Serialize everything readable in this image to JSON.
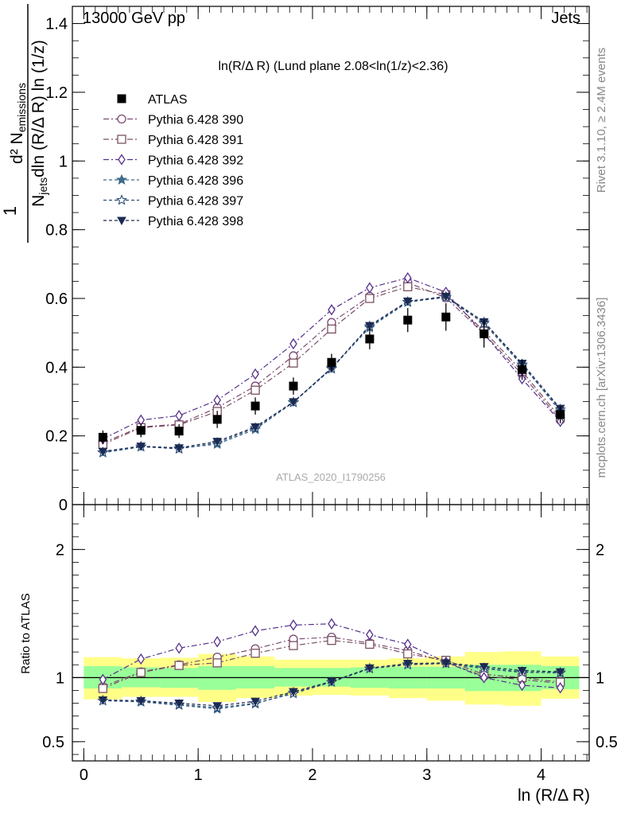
{
  "header": {
    "left": "13000 GeV pp",
    "right": "Jets"
  },
  "plot_title": "ln(R/Δ R) (Lund plane 2.08<ln(1/z)<2.36)",
  "watermark": "ATLAS_2020_I1790256",
  "side_labels": {
    "rivet": "Rivet 3.1.10, ≥ 2.4M events",
    "mcplots": "mcplots.cern.ch [arXiv:1306.3436]"
  },
  "y_label_main": {
    "numerator": "d² N",
    "numerator_sub": "emissions",
    "denominator": "N",
    "denominator_sub": "jets",
    "denominator_rest": "dln (R/Δ R) ln (1/z)",
    "one": "1"
  },
  "y_label_ratio": "Ratio to ATLAS",
  "x_label": "ln (R/Δ R)",
  "colors": {
    "data": "#000000",
    "p390": "#7b4a74",
    "p391": "#7a5060",
    "p392": "#55308a",
    "p396": "#3f6a8a",
    "p397": "#2e4e78",
    "p398": "#1c2a52",
    "band_inner": "#99ff99",
    "band_outer": "#ffff88"
  },
  "chart_data": [
    {
      "type": "line",
      "name": "main",
      "xlim": [
        -0.1,
        4.42
      ],
      "ylim": [
        0,
        1.45
      ],
      "x_ticks": [
        "0",
        "1",
        "2",
        "3",
        "4"
      ],
      "y_ticks": [
        "0",
        "0.2",
        "0.4",
        "0.6",
        "0.8",
        "1",
        "1.2",
        "1.4"
      ],
      "x": [
        0.167,
        0.5,
        0.833,
        1.167,
        1.5,
        1.833,
        2.167,
        2.5,
        2.833,
        3.167,
        3.5,
        3.833,
        4.167
      ],
      "data": {
        "name": "ATLAS",
        "values": [
          0.196,
          0.216,
          0.214,
          0.248,
          0.287,
          0.345,
          0.414,
          0.482,
          0.537,
          0.546,
          0.497,
          0.393,
          0.262
        ],
        "errors": [
          0.02,
          0.02,
          0.02,
          0.025,
          0.025,
          0.025,
          0.025,
          0.03,
          0.035,
          0.04,
          0.04,
          0.03,
          0.025
        ]
      },
      "series": [
        {
          "name": "Pythia 6.428 390",
          "marker": "circle-open",
          "color_key": "p390",
          "dash": "dashdot",
          "values": [
            0.18,
            0.226,
            0.234,
            0.282,
            0.345,
            0.433,
            0.53,
            0.606,
            0.646,
            0.602,
            0.497,
            0.379,
            0.246
          ]
        },
        {
          "name": "Pythia 6.428 391",
          "marker": "square-open",
          "color_key": "p391",
          "dash": "dashdot",
          "values": [
            0.175,
            0.224,
            0.232,
            0.271,
            0.333,
            0.412,
            0.511,
            0.6,
            0.634,
            0.611,
            0.505,
            0.388,
            0.253
          ]
        },
        {
          "name": "Pythia 6.428 392",
          "marker": "diamond-open",
          "color_key": "p392",
          "dash": "dashdot",
          "values": [
            0.191,
            0.246,
            0.259,
            0.304,
            0.38,
            0.468,
            0.567,
            0.631,
            0.66,
            0.618,
            0.497,
            0.366,
            0.242
          ]
        },
        {
          "name": "Pythia 6.428 396",
          "marker": "star-filled",
          "color_key": "p396",
          "dash": "dashed",
          "values": [
            0.151,
            0.168,
            0.164,
            0.176,
            0.219,
            0.298,
            0.398,
            0.515,
            0.589,
            0.605,
            0.531,
            0.408,
            0.271
          ]
        },
        {
          "name": "Pythia 6.428 397",
          "marker": "star-open",
          "color_key": "p397",
          "dash": "dashed",
          "values": [
            0.152,
            0.169,
            0.162,
            0.18,
            0.223,
            0.297,
            0.395,
            0.519,
            0.59,
            0.603,
            0.527,
            0.405,
            0.277
          ]
        },
        {
          "name": "Pythia 6.428 398",
          "marker": "triangle-down-filled",
          "color_key": "p398",
          "dash": "dashed",
          "values": [
            0.155,
            0.17,
            0.165,
            0.184,
            0.226,
            0.299,
            0.397,
            0.521,
            0.592,
            0.606,
            0.532,
            0.411,
            0.28
          ]
        }
      ]
    },
    {
      "type": "line",
      "name": "ratio",
      "ylabel": "Ratio to ATLAS",
      "xlim": [
        -0.1,
        4.42
      ],
      "ylim": [
        0.35,
        2.35
      ],
      "y_ticks": [
        "0.5",
        "1",
        "2"
      ],
      "bin_edges": [
        0,
        0.333,
        0.667,
        1.0,
        1.333,
        1.667,
        2.0,
        2.333,
        2.667,
        3.0,
        3.333,
        3.667,
        4.0,
        4.333
      ],
      "band_inner": [
        [
          0.915,
          1.09
        ],
        [
          0.925,
          1.08
        ],
        [
          0.92,
          1.075
        ],
        [
          0.905,
          1.09
        ],
        [
          0.915,
          1.09
        ],
        [
          0.93,
          1.075
        ],
        [
          0.93,
          1.075
        ],
        [
          0.92,
          1.08
        ],
        [
          0.915,
          1.085
        ],
        [
          0.915,
          1.085
        ],
        [
          0.895,
          1.1
        ],
        [
          0.895,
          1.1
        ],
        [
          0.91,
          1.09
        ]
      ],
      "band_outer": [
        [
          0.83,
          1.16
        ],
        [
          0.85,
          1.15
        ],
        [
          0.85,
          1.155
        ],
        [
          0.81,
          1.185
        ],
        [
          0.84,
          1.165
        ],
        [
          0.86,
          1.14
        ],
        [
          0.865,
          1.14
        ],
        [
          0.86,
          1.14
        ],
        [
          0.84,
          1.15
        ],
        [
          0.82,
          1.165
        ],
        [
          0.79,
          1.2
        ],
        [
          0.78,
          1.205
        ],
        [
          0.835,
          1.165
        ]
      ],
      "series": [
        {
          "name": "Pythia 6.428 390",
          "values": [
            0.93,
            1.045,
            1.1,
            1.16,
            1.225,
            1.3,
            1.315,
            1.27,
            1.21,
            1.12,
            1.01,
            0.985,
            0.955
          ]
        },
        {
          "name": "Pythia 6.428 391",
          "values": [
            0.915,
            1.04,
            1.095,
            1.115,
            1.19,
            1.25,
            1.29,
            1.26,
            1.185,
            1.135,
            1.025,
            1.0,
            0.965
          ]
        },
        {
          "name": "Pythia 6.428 392",
          "values": [
            0.985,
            1.145,
            1.23,
            1.28,
            1.365,
            1.41,
            1.42,
            1.335,
            1.26,
            1.12,
            1.0,
            0.94,
            0.92
          ]
        },
        {
          "name": "Pythia 6.428 396",
          "values": [
            0.82,
            0.81,
            0.785,
            0.755,
            0.795,
            0.885,
            0.965,
            1.07,
            1.105,
            1.11,
            1.075,
            1.045,
            1.035
          ]
        },
        {
          "name": "Pythia 6.428 397",
          "values": [
            0.82,
            0.815,
            0.79,
            0.765,
            0.8,
            0.875,
            0.965,
            1.07,
            1.1,
            1.11,
            1.07,
            1.04,
            1.04
          ]
        },
        {
          "name": "Pythia 6.428 398",
          "values": [
            0.825,
            0.82,
            0.8,
            0.78,
            0.815,
            0.89,
            0.97,
            1.075,
            1.11,
            1.115,
            1.085,
            1.055,
            1.045
          ]
        }
      ]
    }
  ]
}
